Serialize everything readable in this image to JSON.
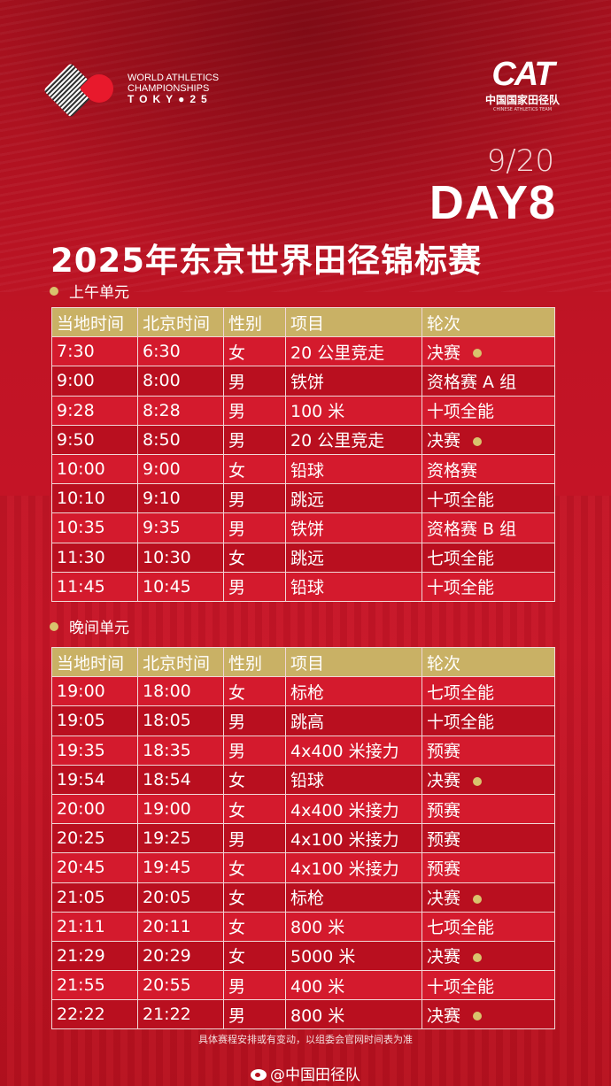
{
  "header": {
    "wa_logo": {
      "line1": "WORLD ATHLETICS",
      "line2": "CHAMPIONSHIPS",
      "line3": "TOKY●25"
    },
    "cat_logo": {
      "mark": "CAT",
      "cn": "中国国家田径队",
      "en": "CHINESE ATHLETICS TEAM"
    },
    "date": "9/20",
    "day": "DAY8",
    "title": "2025年东京世界田径锦标赛"
  },
  "colors": {
    "header_gold": "#c9b165",
    "row_dark": "#b90f1f",
    "row_light": "#d41a2d",
    "medal_dot": "#d9c36d"
  },
  "columns": [
    "当地时间",
    "北京时间",
    "性别",
    "项目",
    "轮次"
  ],
  "morning": {
    "label": "上午单元",
    "rows": [
      {
        "local": "7:30",
        "beijing": "6:30",
        "gender": "女",
        "event": "20 公里竞走",
        "round": "决赛",
        "final": true
      },
      {
        "local": "9:00",
        "beijing": "8:00",
        "gender": "男",
        "event": "铁饼",
        "round": "资格赛 A 组",
        "final": false
      },
      {
        "local": "9:28",
        "beijing": "8:28",
        "gender": "男",
        "event": "100 米",
        "round": "十项全能",
        "final": false
      },
      {
        "local": "9:50",
        "beijing": "8:50",
        "gender": "男",
        "event": "20 公里竞走",
        "round": "决赛",
        "final": true
      },
      {
        "local": "10:00",
        "beijing": "9:00",
        "gender": "女",
        "event": "铅球",
        "round": "资格赛",
        "final": false
      },
      {
        "local": "10:10",
        "beijing": "9:10",
        "gender": "男",
        "event": "跳远",
        "round": "十项全能",
        "final": false
      },
      {
        "local": "10:35",
        "beijing": "9:35",
        "gender": "男",
        "event": "铁饼",
        "round": "资格赛 B 组",
        "final": false
      },
      {
        "local": "11:30",
        "beijing": "10:30",
        "gender": "女",
        "event": "跳远",
        "round": "七项全能",
        "final": false
      },
      {
        "local": "11:45",
        "beijing": "10:45",
        "gender": "男",
        "event": "铅球",
        "round": "十项全能",
        "final": false
      }
    ]
  },
  "evening": {
    "label": "晚间单元",
    "rows": [
      {
        "local": "19:00",
        "beijing": "18:00",
        "gender": "女",
        "event": "标枪",
        "round": "七项全能",
        "final": false
      },
      {
        "local": "19:05",
        "beijing": "18:05",
        "gender": "男",
        "event": "跳高",
        "round": "十项全能",
        "final": false
      },
      {
        "local": "19:35",
        "beijing": "18:35",
        "gender": "男",
        "event": "4x400 米接力",
        "round": "预赛",
        "final": false
      },
      {
        "local": "19:54",
        "beijing": "18:54",
        "gender": "女",
        "event": "铅球",
        "round": "决赛",
        "final": true
      },
      {
        "local": "20:00",
        "beijing": "19:00",
        "gender": "女",
        "event": "4x400 米接力",
        "round": "预赛",
        "final": false
      },
      {
        "local": "20:25",
        "beijing": "19:25",
        "gender": "男",
        "event": "4x100 米接力",
        "round": "预赛",
        "final": false
      },
      {
        "local": "20:45",
        "beijing": "19:45",
        "gender": "女",
        "event": "4x100 米接力",
        "round": "预赛",
        "final": false
      },
      {
        "local": "21:05",
        "beijing": "20:05",
        "gender": "女",
        "event": "标枪",
        "round": "决赛",
        "final": true
      },
      {
        "local": "21:11",
        "beijing": "20:11",
        "gender": "女",
        "event": "800 米",
        "round": "七项全能",
        "final": false
      },
      {
        "local": "21:29",
        "beijing": "20:29",
        "gender": "女",
        "event": "5000 米",
        "round": "决赛",
        "final": true
      },
      {
        "local": "21:55",
        "beijing": "20:55",
        "gender": "男",
        "event": "400 米",
        "round": "十项全能",
        "final": false
      },
      {
        "local": "22:22",
        "beijing": "21:22",
        "gender": "男",
        "event": "800 米",
        "round": "决赛",
        "final": true
      }
    ]
  },
  "footer": {
    "note": "具体赛程安排或有变动，以组委会官网时间表为准",
    "weibo": "@中国田径队"
  }
}
